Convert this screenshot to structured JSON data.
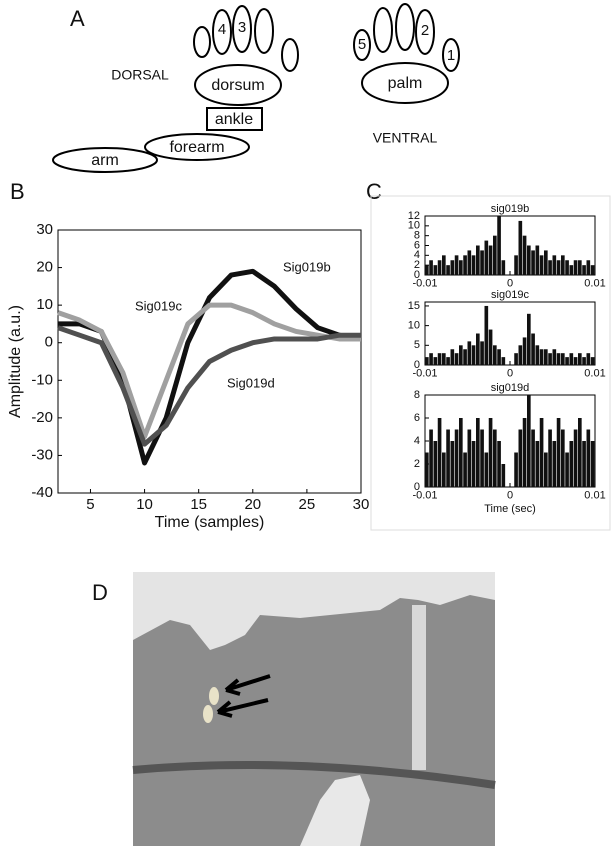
{
  "panel_labels": [
    "A",
    "B",
    "C",
    "D"
  ],
  "diagram": {
    "dorsal_label": "DORSAL",
    "ventral_label": "VENTRAL",
    "dorsum": "dorsum",
    "palm": "palm",
    "ankle": "ankle",
    "forearm": "forearm",
    "arm": "arm",
    "dorsal_digits": [
      "4",
      "3"
    ],
    "ventral_digits": [
      "5",
      "2",
      "1"
    ]
  },
  "chart_data": [
    {
      "type": "line",
      "xlabel": "Time (samples)",
      "ylabel": "Amplitude (a.u.)",
      "x": [
        2,
        4,
        6,
        8,
        10,
        12,
        14,
        16,
        18,
        20,
        22,
        24,
        26,
        28,
        30
      ],
      "series": [
        {
          "name": "Sig019b",
          "color": "#111111",
          "values": [
            5,
            5,
            3,
            -10,
            -32,
            -20,
            0,
            12,
            18,
            19,
            15,
            9,
            4,
            2,
            1
          ]
        },
        {
          "name": "Sig019c",
          "color": "#a0a0a0",
          "values": [
            8,
            6,
            3,
            -8,
            -25,
            -10,
            5,
            10,
            10,
            8,
            5,
            3,
            2,
            1,
            1
          ]
        },
        {
          "name": "Sig019d",
          "color": "#505050",
          "values": [
            4,
            2,
            0,
            -12,
            -27,
            -22,
            -12,
            -5,
            -2,
            0,
            1,
            1,
            1,
            2,
            2
          ]
        }
      ],
      "xlim": [
        2,
        30
      ],
      "ylim": [
        -40,
        30
      ],
      "xticks": [
        5,
        10,
        15,
        20,
        25,
        30
      ],
      "yticks": [
        -40,
        -30,
        -20,
        -10,
        0,
        10,
        20,
        30
      ]
    },
    {
      "type": "histogram",
      "title": "sig019b",
      "color": "#111111",
      "bins": [
        -0.01,
        -0.0095,
        -0.009,
        -0.0085,
        -0.008,
        -0.0075,
        -0.007,
        -0.0065,
        -0.006,
        -0.0055,
        -0.005,
        -0.0045,
        -0.004,
        -0.0035,
        -0.003,
        -0.0025,
        -0.002,
        -0.0015,
        -0.001,
        -0.0005,
        0,
        0.0005,
        0.001,
        0.0015,
        0.002,
        0.0025,
        0.003,
        0.0035,
        0.004,
        0.0045,
        0.005,
        0.0055,
        0.006,
        0.0065,
        0.007,
        0.0075,
        0.008,
        0.0085,
        0.009,
        0.0095,
        0.01
      ],
      "counts": [
        2,
        3,
        2,
        3,
        4,
        2,
        3,
        4,
        3,
        4,
        5,
        4,
        6,
        5,
        7,
        6,
        8,
        12,
        3,
        0,
        0,
        4,
        11,
        8,
        6,
        5,
        6,
        4,
        5,
        3,
        4,
        3,
        4,
        3,
        2,
        3,
        3,
        2,
        3,
        2
      ],
      "xlim": [
        -0.01,
        0.01
      ],
      "ylim": [
        0,
        12
      ],
      "xticks": [
        -0.01,
        0,
        0.01
      ],
      "yticks": [
        0,
        2,
        4,
        6,
        8,
        10,
        12
      ]
    },
    {
      "type": "histogram",
      "title": "sig019c",
      "color": "#111111",
      "bins": [
        -0.01,
        -0.0095,
        -0.009,
        -0.0085,
        -0.008,
        -0.0075,
        -0.007,
        -0.0065,
        -0.006,
        -0.0055,
        -0.005,
        -0.0045,
        -0.004,
        -0.0035,
        -0.003,
        -0.0025,
        -0.002,
        -0.0015,
        -0.001,
        -0.0005,
        0,
        0.0005,
        0.001,
        0.0015,
        0.002,
        0.0025,
        0.003,
        0.0035,
        0.004,
        0.0045,
        0.005,
        0.0055,
        0.006,
        0.0065,
        0.007,
        0.0075,
        0.008,
        0.0085,
        0.009,
        0.0095,
        0.01
      ],
      "counts": [
        2,
        3,
        2,
        3,
        3,
        2,
        4,
        3,
        5,
        4,
        6,
        5,
        8,
        6,
        15,
        9,
        5,
        4,
        2,
        0,
        0,
        3,
        5,
        7,
        13,
        8,
        5,
        4,
        4,
        3,
        4,
        3,
        3,
        2,
        3,
        2,
        3,
        2,
        3,
        2
      ],
      "xlim": [
        -0.01,
        0.01
      ],
      "ylim": [
        0,
        16
      ],
      "xticks": [
        -0.01,
        0,
        0.01
      ],
      "yticks": [
        0,
        5,
        10,
        15
      ]
    },
    {
      "type": "histogram",
      "title": "sig019d",
      "xlabel": "Time (sec)",
      "color": "#111111",
      "bins": [
        -0.01,
        -0.0095,
        -0.009,
        -0.0085,
        -0.008,
        -0.0075,
        -0.007,
        -0.0065,
        -0.006,
        -0.0055,
        -0.005,
        -0.0045,
        -0.004,
        -0.0035,
        -0.003,
        -0.0025,
        -0.002,
        -0.0015,
        -0.001,
        -0.0005,
        0,
        0.0005,
        0.001,
        0.0015,
        0.002,
        0.0025,
        0.003,
        0.0035,
        0.004,
        0.0045,
        0.005,
        0.0055,
        0.006,
        0.0065,
        0.007,
        0.0075,
        0.008,
        0.0085,
        0.009,
        0.0095,
        0.01
      ],
      "counts": [
        3,
        5,
        4,
        6,
        3,
        5,
        4,
        5,
        6,
        3,
        5,
        4,
        6,
        5,
        3,
        6,
        5,
        4,
        2,
        0,
        0,
        3,
        5,
        6,
        8,
        5,
        4,
        6,
        3,
        5,
        4,
        6,
        5,
        3,
        4,
        5,
        6,
        4,
        5,
        4
      ],
      "xlim": [
        -0.01,
        0.01
      ],
      "ylim": [
        0,
        8
      ],
      "xticks": [
        -0.01,
        0,
        0.01
      ],
      "yticks": [
        0,
        2,
        4,
        6,
        8
      ]
    }
  ]
}
